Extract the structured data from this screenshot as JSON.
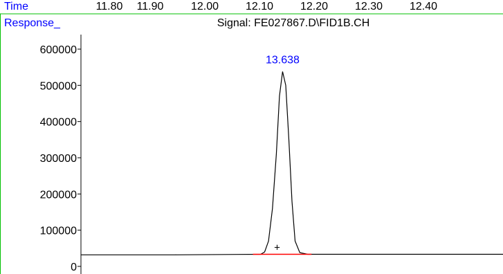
{
  "top_strip": {
    "label": "Time",
    "ticks": [
      "11.80",
      "11.90",
      "12.00",
      "12.10",
      "12.20",
      "12.30",
      "12.40"
    ]
  },
  "response_label": "Response_",
  "signal_title": "Signal: FE027867.D\\FID1B.CH",
  "colors": {
    "label_blue": "#0000ff",
    "frame_green": "#00c000",
    "trace": "#000000",
    "baseline_red": "#ff0000",
    "peak_label": "#0000ff"
  },
  "chart_data": {
    "type": "line",
    "title": "Signal: FE027867.D\\FID1B.CH",
    "ylabel": "Response_",
    "xlabel": "",
    "ylim": [
      -25000,
      650000
    ],
    "y_ticks": [
      0,
      100000,
      200000,
      300000,
      400000,
      500000,
      600000
    ],
    "y_tick_labels": [
      "0",
      "100000",
      "200000",
      "300000",
      "400000",
      "500000",
      "600000"
    ],
    "grid": false,
    "x_range": [
      13.38,
      13.92
    ],
    "series": [
      {
        "points": [
          [
            13.38,
            32000
          ],
          [
            13.5,
            32000
          ],
          [
            13.58,
            33000
          ],
          [
            13.61,
            33500
          ],
          [
            13.615,
            40000
          ],
          [
            13.62,
            70000
          ],
          [
            13.625,
            160000
          ],
          [
            13.63,
            310000
          ],
          [
            13.634,
            470000
          ],
          [
            13.638,
            538000
          ],
          [
            13.642,
            500000
          ],
          [
            13.646,
            350000
          ],
          [
            13.65,
            180000
          ],
          [
            13.654,
            70000
          ],
          [
            13.66,
            38000
          ],
          [
            13.67,
            33500
          ],
          [
            13.72,
            33500
          ],
          [
            13.8,
            33500
          ],
          [
            13.92,
            33500
          ]
        ]
      }
    ],
    "integration_baseline": {
      "x_start": 13.6,
      "x_end": 13.675,
      "y": 33500
    },
    "annotations": [
      {
        "text": "13.638",
        "x": 13.638,
        "y": 538000
      },
      {
        "text": "+",
        "x": 13.631,
        "y": 33500
      }
    ]
  }
}
